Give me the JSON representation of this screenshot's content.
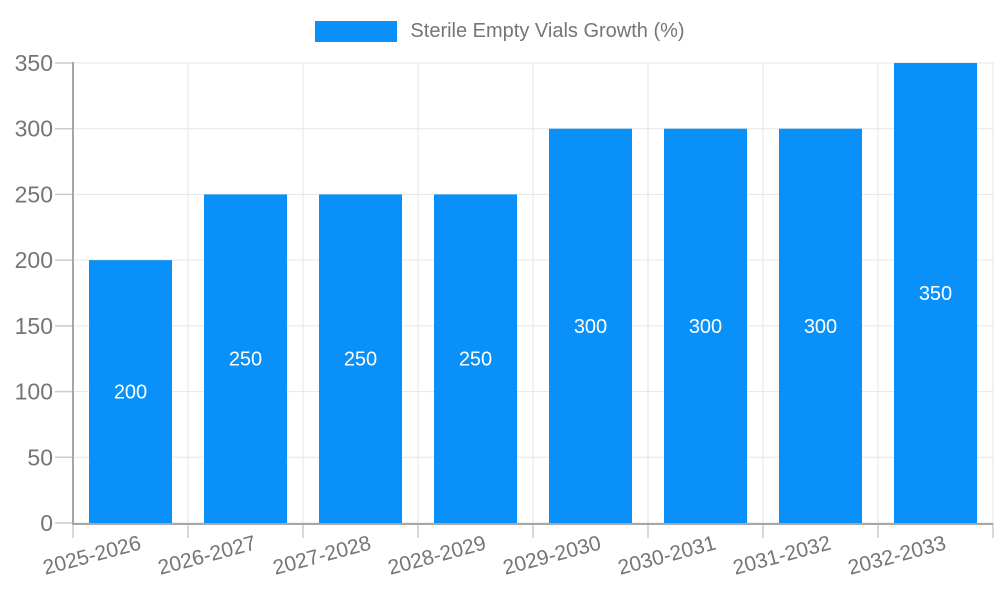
{
  "chart_data": {
    "type": "bar",
    "title": "",
    "legend": {
      "label": "Sterile Empty Vials Growth (%)",
      "position": "top"
    },
    "categories": [
      "2025-2026",
      "2026-2027",
      "2027-2028",
      "2028-2029",
      "2029-2030",
      "2030-2031",
      "2031-2032",
      "2032-2033"
    ],
    "series": [
      {
        "name": "Sterile Empty Vials Growth (%)",
        "values": [
          200,
          250,
          250,
          250,
          300,
          300,
          300,
          350
        ]
      }
    ],
    "ylim": [
      0,
      350
    ],
    "yticks": [
      0,
      50,
      100,
      150,
      200,
      250,
      300,
      350
    ],
    "grid": true,
    "x_label_rotation_deg": -15,
    "colors": {
      "bar": "#0991f9",
      "data_label": "#ffffff",
      "axis_text": "#757575",
      "grid_line": "#e6e6e6",
      "axis_line": "#a6a6a6",
      "tick_line": "#cccccc",
      "background": "#ffffff"
    }
  }
}
